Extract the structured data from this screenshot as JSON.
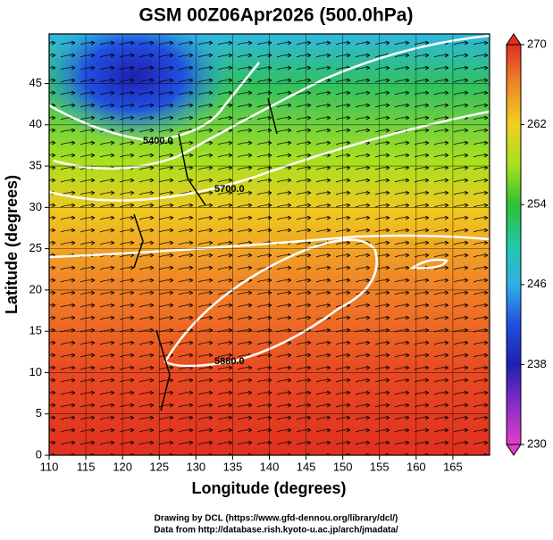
{
  "chart_data": {
    "type": "map",
    "title": "GSM 00Z06Apr2026 (500.0hPa)",
    "x_label": "Longitude (degrees)",
    "y_label": "Latitude  (degrees)",
    "xlim": [
      110,
      170
    ],
    "ylim": [
      0,
      51
    ],
    "xticks": [
      110,
      115,
      120,
      125,
      130,
      135,
      140,
      145,
      150,
      155,
      160,
      165
    ],
    "yticks": [
      0,
      5,
      10,
      15,
      20,
      25,
      30,
      35,
      40,
      45
    ],
    "grid": true,
    "contour_labels": [
      "5400.0",
      "5700.0",
      "5880.0"
    ],
    "colorbar": {
      "lim": [
        230,
        270
      ],
      "ticks": [
        230,
        238,
        246,
        254,
        262,
        270
      ],
      "colors": [
        "#e040c8",
        "#8a2cc8",
        "#2020b0",
        "#2050e0",
        "#30b0e8",
        "#20c8a8",
        "#30c030",
        "#a8e020",
        "#f0d020",
        "#f08828",
        "#e03020"
      ]
    },
    "footer": [
      "Drawing by DCL (https://www.gfd-dennou.org/library/dcl/)",
      "Data from http://database.rish.kyoto-u.ac.jp/arch/jmadata/"
    ]
  }
}
